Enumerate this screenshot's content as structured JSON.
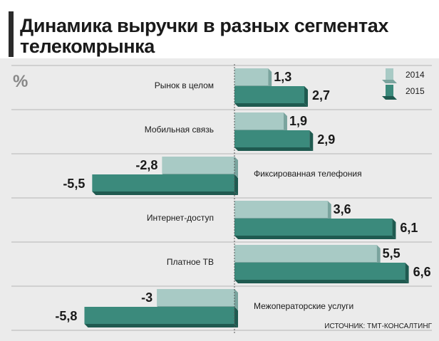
{
  "title": "Динамика выручки в разных сегментах телекомрынка",
  "unit_label": "%",
  "source": "ИСТОЧНИК: ТМТ-КОНСАЛТИНГ",
  "colors": {
    "s2014": "#a8cac5",
    "s2015": "#3b8a7c",
    "s2015_dark": "#1f5a50",
    "s2014_dark": "#7aa49e"
  },
  "chart_data": {
    "type": "bar",
    "orientation": "horizontal",
    "categories": [
      "Рынок в целом",
      "Мобильная связь",
      "Фиксированная телефония",
      "Интернет-доступ",
      "Платное ТВ",
      "Межоператорские услуги"
    ],
    "series": [
      {
        "name": "2014",
        "values": [
          1.3,
          1.9,
          -2.8,
          3.6,
          5.5,
          -3
        ],
        "labels": [
          "1,3",
          "1,9",
          "-2,8",
          "3,6",
          "5,5",
          "-3"
        ]
      },
      {
        "name": "2015",
        "values": [
          2.7,
          2.9,
          -5.5,
          6.1,
          6.6,
          -5.8
        ],
        "labels": [
          "2,7",
          "2,9",
          "-5,5",
          "6,1",
          "6,6",
          "-5,8"
        ]
      }
    ],
    "legend": "top-right",
    "grid": true
  }
}
